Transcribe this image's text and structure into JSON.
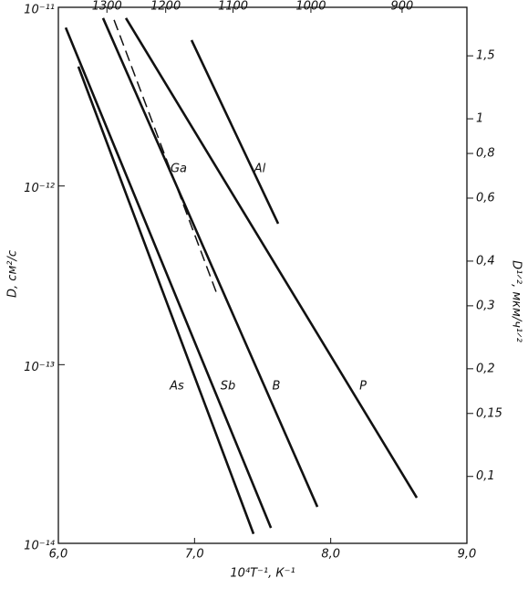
{
  "chart_data": {
    "type": "line",
    "xlabel": "10⁴T⁻¹, К⁻¹",
    "ylabel": "D, см²/с",
    "y2label": "D¹ᐟ², мкм/ч¹ᐟ²",
    "xlim": [
      6.0,
      9.0
    ],
    "xticks": [
      {
        "value": 6.0,
        "label": "6,0"
      },
      {
        "value": 7.0,
        "label": "7,0"
      },
      {
        "value": 8.0,
        "label": "8,0"
      },
      {
        "value": 9.0,
        "label": "9,0"
      }
    ],
    "ylim": [
      1e-14,
      1e-11
    ],
    "yscale": "log",
    "yticks": [
      {
        "value": 1e-11,
        "label": "10⁻¹¹"
      },
      {
        "value": 1e-12,
        "label": "10⁻¹²"
      },
      {
        "value": 1e-13,
        "label": "10⁻¹³"
      },
      {
        "value": 1e-14,
        "label": "10⁻¹⁴"
      }
    ],
    "x2scale": "celsius",
    "x2ticks": [
      1300,
      1200,
      1100,
      1000,
      900
    ],
    "y2lim": [
      0.065,
      2.05
    ],
    "y2scale": "log",
    "y2ticks": [
      {
        "value": 1.5,
        "label": "1,5"
      },
      1,
      {
        "value": 0.8,
        "label": "0,8"
      },
      {
        "value": 0.6,
        "label": "0,6"
      },
      {
        "value": 0.4,
        "label": "0,4"
      },
      {
        "value": 0.3,
        "label": "0,3"
      },
      {
        "value": 0.2,
        "label": "0,2"
      },
      {
        "value": 0.15,
        "label": "0,15"
      },
      {
        "value": 0.1,
        "label": "0,1"
      }
    ],
    "series": [
      {
        "name": "As",
        "color": "#111",
        "x": [
          6.147,
          7.433
        ],
        "values": [
          4.66e-12,
          1.13e-14
        ]
      },
      {
        "name": "Sb",
        "color": "#111",
        "x": [
          6.054,
          7.561
        ],
        "values": [
          7.7e-12,
          1.22e-14
        ]
      },
      {
        "name": "B",
        "color": "#111",
        "x": [
          6.328,
          7.902
        ],
        "values": [
          8.7e-12,
          1.6e-14
        ]
      },
      {
        "name": "P",
        "color": "#111",
        "x": [
          6.496,
          8.632
        ],
        "values": [
          8.7e-12,
          1.8e-14
        ]
      },
      {
        "name": "Al",
        "color": "#111",
        "x": [
          6.978,
          7.614
        ],
        "values": [
          6.55e-12,
          6.15e-13
        ]
      },
      {
        "name": "Ga",
        "color": "#111",
        "dashed": true,
        "x": [
          6.409,
          7.159
        ],
        "values": [
          8.5e-12,
          2.55e-13
        ]
      }
    ]
  }
}
